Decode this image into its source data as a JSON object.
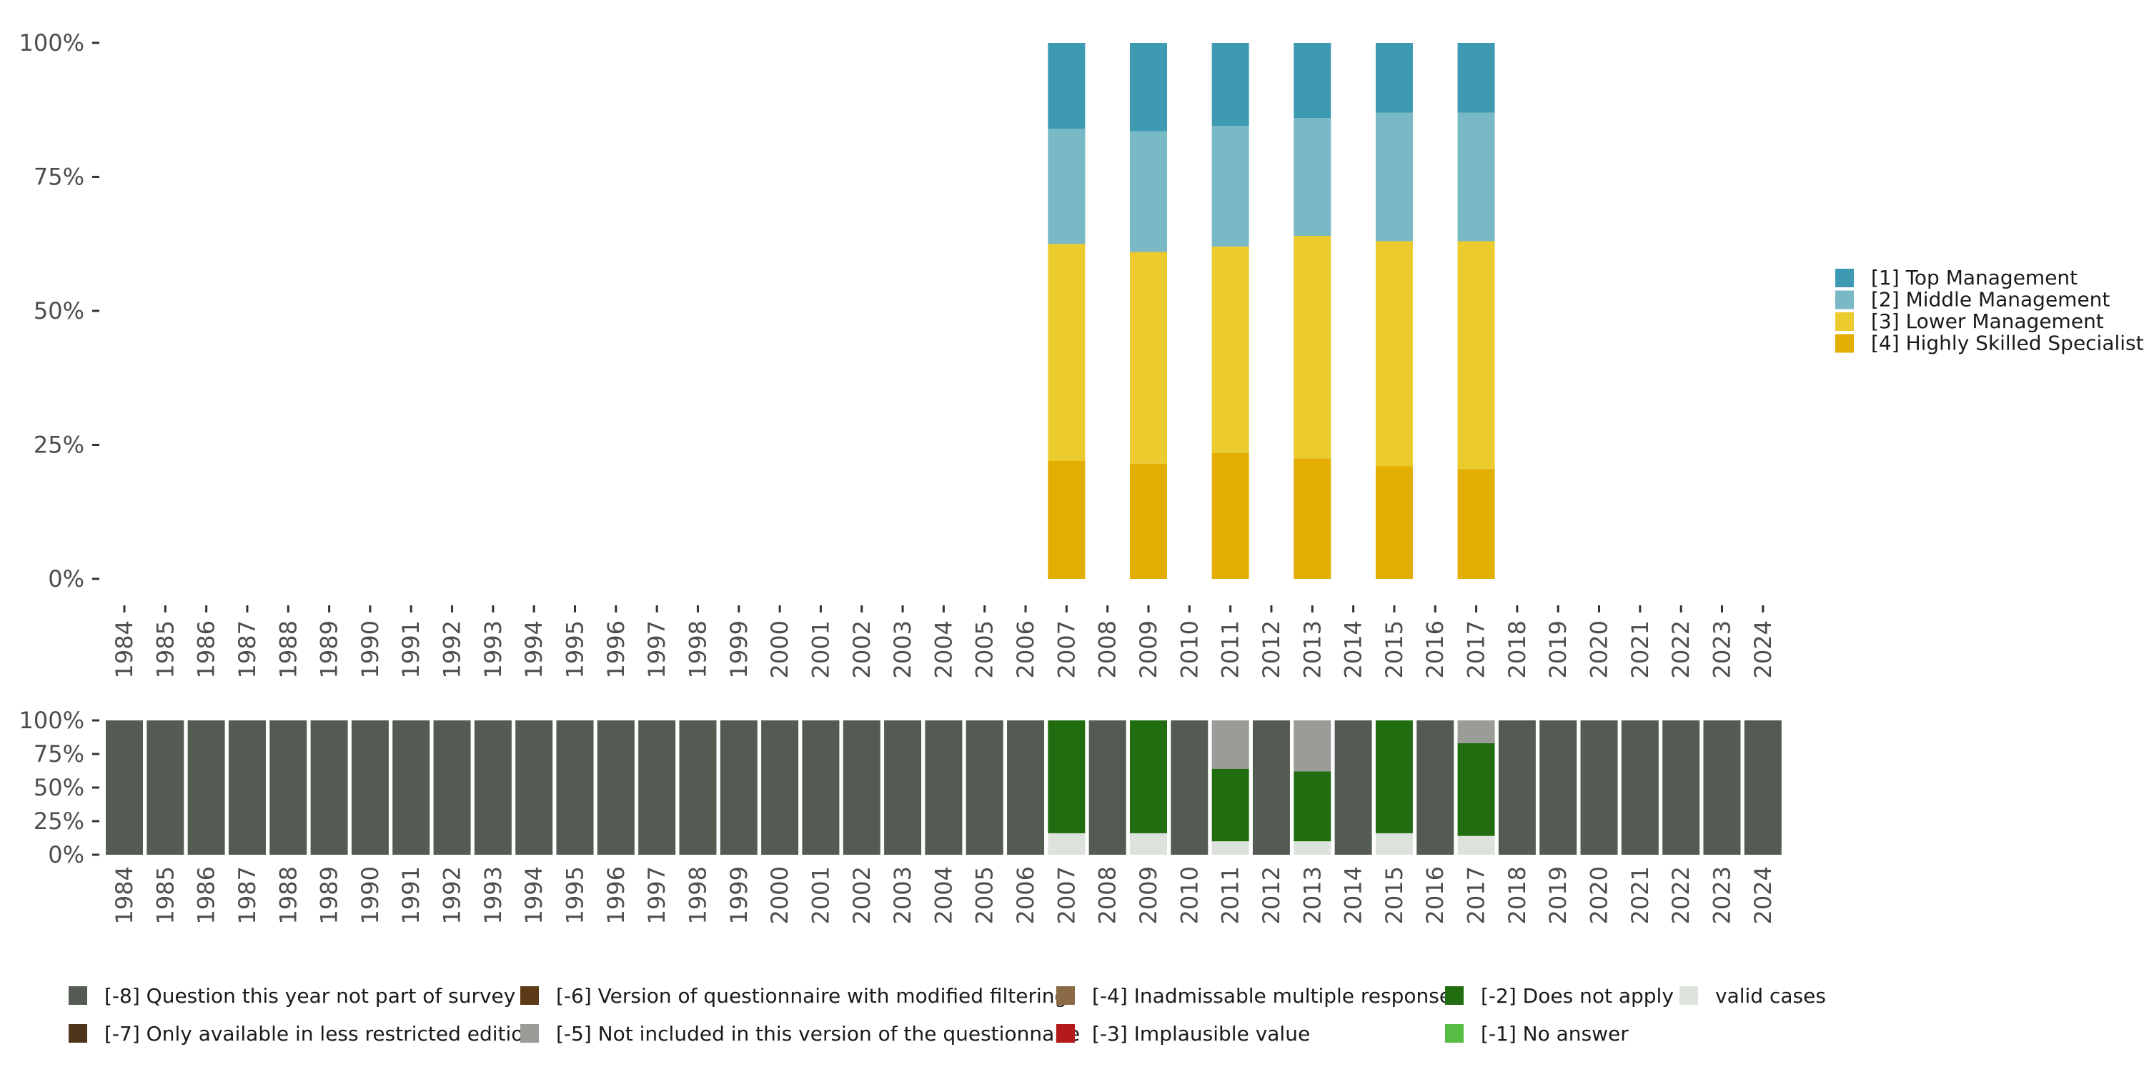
{
  "chart_data": [
    {
      "type": "bar",
      "stacked": true,
      "percent": true,
      "categories": [
        "1984",
        "1985",
        "1986",
        "1987",
        "1988",
        "1989",
        "1990",
        "1991",
        "1992",
        "1993",
        "1994",
        "1995",
        "1996",
        "1997",
        "1998",
        "1999",
        "2000",
        "2001",
        "2002",
        "2003",
        "2004",
        "2005",
        "2006",
        "2007",
        "2008",
        "2009",
        "2010",
        "2011",
        "2012",
        "2013",
        "2014",
        "2015",
        "2016",
        "2017",
        "2018",
        "2019",
        "2020",
        "2021",
        "2022",
        "2023",
        "2024"
      ],
      "y_ticks": [
        "0%",
        "25%",
        "50%",
        "75%",
        "100%"
      ],
      "ylim": [
        0,
        1
      ],
      "legend_position": "right",
      "series": [
        {
          "name": "[4] Highly Skilled Specialist",
          "color": "#e1ae01",
          "values": {
            "2007": 0.22,
            "2009": 0.215,
            "2011": 0.235,
            "2013": 0.225,
            "2015": 0.21,
            "2017": 0.205
          }
        },
        {
          "name": "[3] Lower Management",
          "color": "#ebcb2e",
          "values": {
            "2007": 0.405,
            "2009": 0.395,
            "2011": 0.385,
            "2013": 0.415,
            "2015": 0.42,
            "2017": 0.425
          }
        },
        {
          "name": "[2] Middle Management",
          "color": "#79b8c5",
          "values": {
            "2007": 0.215,
            "2009": 0.225,
            "2011": 0.225,
            "2013": 0.22,
            "2015": 0.24,
            "2017": 0.24
          }
        },
        {
          "name": "[1] Top Management",
          "color": "#3d9ab2",
          "values": {
            "2007": 0.16,
            "2009": 0.165,
            "2011": 0.155,
            "2013": 0.14,
            "2015": 0.13,
            "2017": 0.13
          }
        }
      ],
      "legend_order": [
        "[1] Top Management",
        "[2] Middle Management",
        "[3] Lower Management",
        "[4] Highly Skilled Specialist"
      ]
    },
    {
      "type": "bar",
      "stacked": true,
      "percent": true,
      "categories": [
        "1984",
        "1985",
        "1986",
        "1987",
        "1988",
        "1989",
        "1990",
        "1991",
        "1992",
        "1993",
        "1994",
        "1995",
        "1996",
        "1997",
        "1998",
        "1999",
        "2000",
        "2001",
        "2002",
        "2003",
        "2004",
        "2005",
        "2006",
        "2007",
        "2008",
        "2009",
        "2010",
        "2011",
        "2012",
        "2013",
        "2014",
        "2015",
        "2016",
        "2017",
        "2018",
        "2019",
        "2020",
        "2021",
        "2022",
        "2023",
        "2024"
      ],
      "y_ticks": [
        "0%",
        "25%",
        "50%",
        "75%",
        "100%"
      ],
      "ylim": [
        0,
        1
      ],
      "legend_position": "bottom",
      "series": [
        {
          "name": "valid cases",
          "color": "#dde3dc",
          "values": {
            "2007": 0.16,
            "2009": 0.16,
            "2011": 0.1,
            "2013": 0.1,
            "2015": 0.16,
            "2017": 0.14
          }
        },
        {
          "name": "[-2] Does not apply",
          "color": "#216d10",
          "values": {
            "2007": 0.84,
            "2009": 0.84,
            "2011": 0.54,
            "2013": 0.52,
            "2015": 0.84,
            "2017": 0.69
          }
        },
        {
          "name": "[-5] Not included in this version of the questionnaire",
          "color": "#999c97",
          "values": {
            "2011": 0.36,
            "2013": 0.38,
            "2017": 0.17
          }
        },
        {
          "name": "[-8] Question this year not part of survey",
          "color": "#545b53",
          "values": {
            "1984": 1,
            "1985": 1,
            "1986": 1,
            "1987": 1,
            "1988": 1,
            "1989": 1,
            "1990": 1,
            "1991": 1,
            "1992": 1,
            "1993": 1,
            "1994": 1,
            "1995": 1,
            "1996": 1,
            "1997": 1,
            "1998": 1,
            "1999": 1,
            "2000": 1,
            "2001": 1,
            "2002": 1,
            "2003": 1,
            "2004": 1,
            "2005": 1,
            "2006": 1,
            "2008": 1,
            "2010": 1,
            "2012": 1,
            "2014": 1,
            "2016": 1,
            "2018": 1,
            "2019": 1,
            "2020": 1,
            "2021": 1,
            "2022": 1,
            "2023": 1,
            "2024": 1
          }
        }
      ],
      "legend": [
        {
          "name": "[-8] Question this year not part of survey",
          "color": "#545b53"
        },
        {
          "name": "[-7] Only available in less restricted edition",
          "color": "#4e3419"
        },
        {
          "name": "[-6] Version of questionnaire with modified filtering",
          "color": "#5c3a17"
        },
        {
          "name": "[-5] Not included in this version of the questionnaire",
          "color": "#999c97"
        },
        {
          "name": "[-4] Inadmissable multiple response",
          "color": "#8b6a48"
        },
        {
          "name": "[-3] Implausible value",
          "color": "#b51a1a"
        },
        {
          "name": "[-2] Does not apply",
          "color": "#216d10"
        },
        {
          "name": "[-1] No answer",
          "color": "#56bc43"
        },
        {
          "name": "valid cases",
          "color": "#dde3dc"
        }
      ]
    }
  ]
}
